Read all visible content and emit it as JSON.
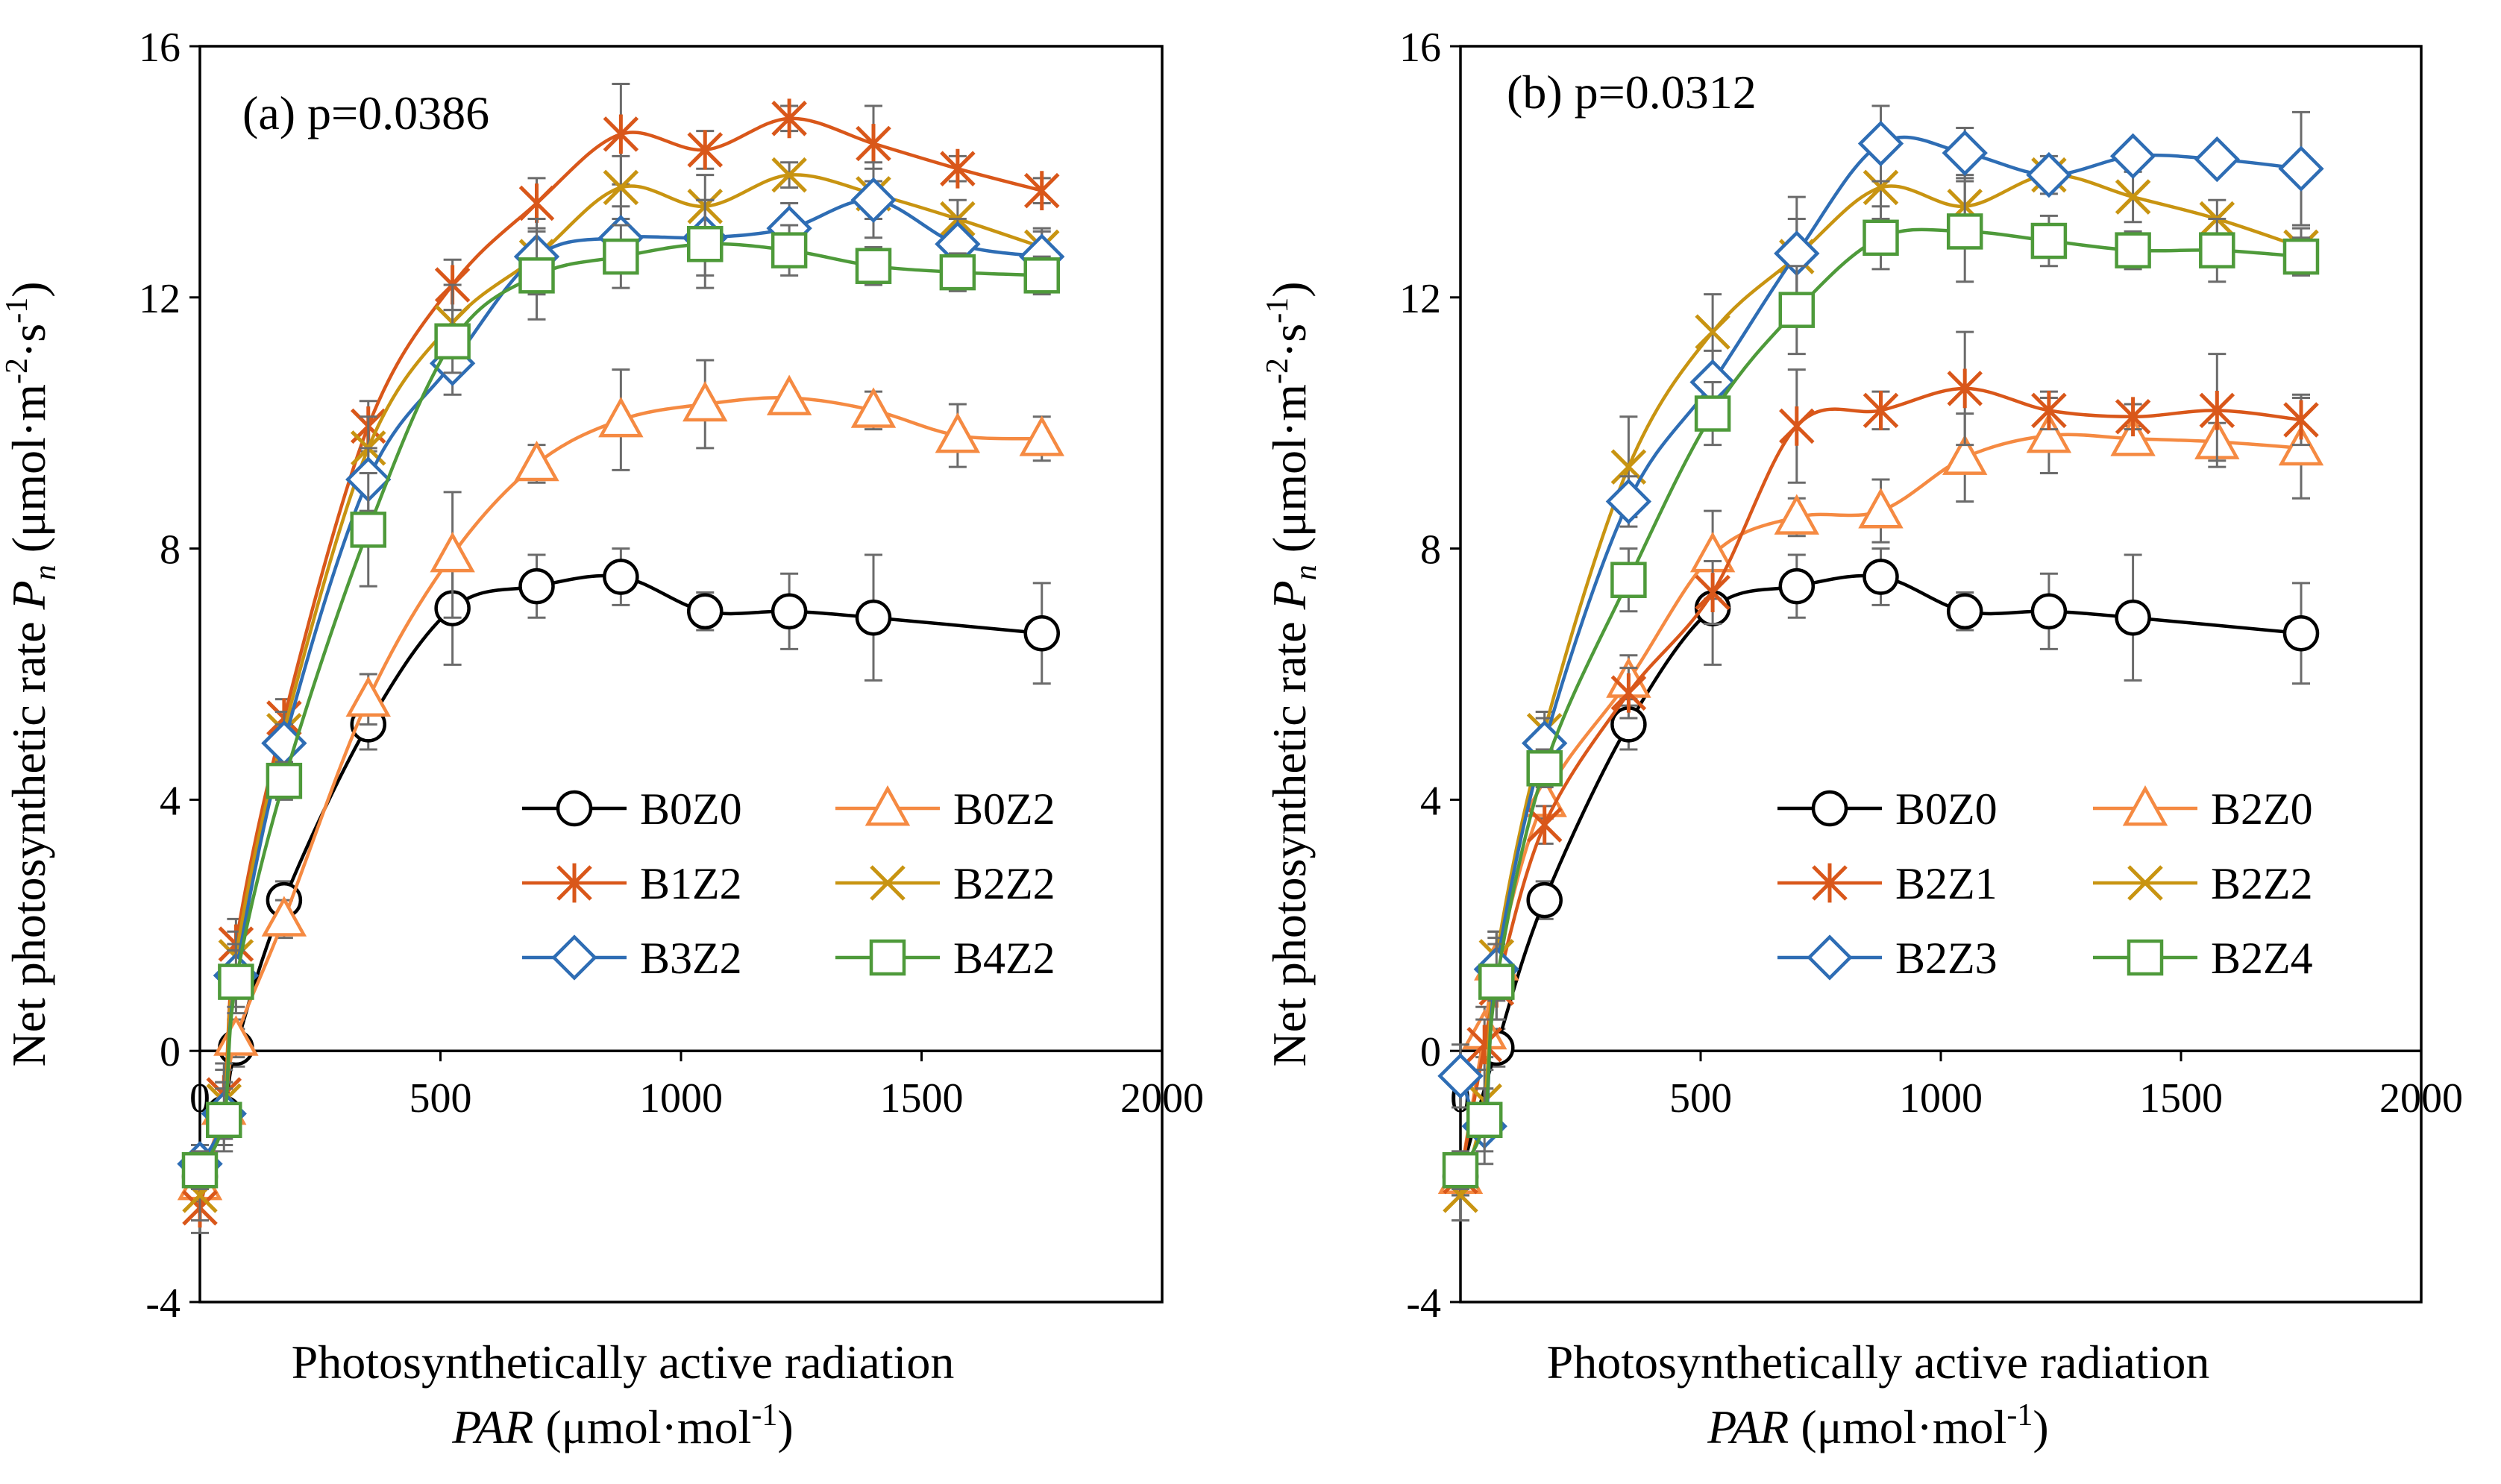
{
  "chart_data": [
    {
      "type": "line",
      "panel_label": "(a)",
      "p_value_text": "p=0.0386",
      "title": "(a) p=0.0386",
      "xlabel_line1": "Photosynthetically active radiation",
      "xlabel_var": "PAR",
      "xlabel_unit_pre": " (μmol·mol",
      "xlabel_unit_sup": "-1",
      "xlabel_unit_post": ")",
      "ylabel_pre": "Net photosynthetic rate ",
      "ylabel_var": "P",
      "ylabel_sub": "n",
      "ylabel_u1": " (μmol·m",
      "ylabel_sup1": "-2",
      "ylabel_u2": "·s",
      "ylabel_sup2": "-1",
      "ylabel_u3": ")",
      "xlim": [
        0,
        2000
      ],
      "ylim": [
        -4,
        16
      ],
      "xticks": [
        0,
        500,
        1000,
        1500,
        2000
      ],
      "xtick_labels": [
        "0",
        "500",
        "1000",
        "1500",
        "2000"
      ],
      "yticks": [
        -4,
        0,
        4,
        8,
        12,
        16
      ],
      "ytick_labels": [
        "-4",
        "0",
        "4",
        "8",
        "12",
        "16"
      ],
      "x": [
        0,
        50,
        75,
        175,
        350,
        525,
        700,
        875,
        1050,
        1225,
        1400,
        1575,
        1750
      ],
      "legend_position": "bottom-right",
      "series": [
        {
          "name": "B0Z0",
          "color": "#000000",
          "marker": "circle",
          "values": [
            -2.0,
            -1.0,
            0.05,
            2.4,
            5.2,
            7.05,
            7.4,
            7.55,
            7.0,
            7.0,
            6.9,
            null,
            6.65
          ],
          "errors": [
            0.3,
            0.4,
            0.3,
            0.3,
            0.4,
            0.9,
            0.5,
            0.45,
            0.3,
            0.6,
            1.0,
            null,
            0.8
          ]
        },
        {
          "name": "B0Z2",
          "color": "#F58A42",
          "marker": "triangle",
          "values": [
            -2.1,
            -0.9,
            0.2,
            2.1,
            5.6,
            7.9,
            9.35,
            10.05,
            10.3,
            10.4,
            10.2,
            9.8,
            9.75
          ],
          "errors": [
            0.3,
            0.4,
            0.3,
            0.3,
            0.4,
            1.0,
            0.3,
            0.8,
            0.7,
            0.1,
            0.3,
            0.5,
            0.35
          ]
        },
        {
          "name": "B1Z2",
          "color": "#D9571A",
          "marker": "asterisk",
          "values": [
            -2.5,
            -0.7,
            1.7,
            5.3,
            9.95,
            12.2,
            13.5,
            14.6,
            14.35,
            14.85,
            14.45,
            14.05,
            13.7
          ],
          "errors": [
            0.4,
            0.5,
            0.4,
            0.3,
            0.4,
            0.4,
            0.4,
            0.8,
            0.3,
            0.2,
            0.6,
            0.2,
            0.2
          ]
        },
        {
          "name": "B2Z2",
          "color": "#C89411",
          "marker": "x",
          "values": [
            -2.3,
            -0.8,
            1.5,
            5.1,
            9.6,
            11.6,
            12.65,
            13.75,
            13.45,
            13.95,
            13.65,
            13.25,
            12.8
          ],
          "errors": [
            0.4,
            0.5,
            0.4,
            0.3,
            0.5,
            0.6,
            0.6,
            0.5,
            0.5,
            0.2,
            0.4,
            0.3,
            0.3
          ]
        },
        {
          "name": "B3Z2",
          "color": "#2E6DB4",
          "marker": "diamond",
          "values": [
            -1.8,
            -1.0,
            1.2,
            4.9,
            9.1,
            10.95,
            12.65,
            12.95,
            12.95,
            13.1,
            13.55,
            12.85,
            12.65
          ],
          "errors": [
            0.3,
            0.5,
            0.5,
            0.3,
            0.5,
            0.5,
            0.6,
            0.5,
            0.6,
            0.4,
            0.6,
            0.4,
            0.4
          ]
        },
        {
          "name": "B4Z2",
          "color": "#4E9A3A",
          "marker": "square",
          "values": [
            -1.9,
            -1.1,
            1.1,
            4.3,
            8.3,
            11.3,
            12.35,
            12.65,
            12.85,
            12.75,
            12.5,
            12.4,
            12.35
          ],
          "errors": [
            0.3,
            0.5,
            0.5,
            0.3,
            0.9,
            0.5,
            0.7,
            0.5,
            0.7,
            0.4,
            0.3,
            0.3,
            0.3
          ]
        }
      ]
    },
    {
      "type": "line",
      "panel_label": "(b)",
      "p_value_text": "p=0.0312",
      "title": "(b) p=0.0312",
      "xlabel_line1": "Photosynthetically active radiation",
      "xlabel_var": "PAR",
      "xlabel_unit_pre": " (μmol·mol",
      "xlabel_unit_sup": "-1",
      "xlabel_unit_post": ")",
      "ylabel_pre": "Net photosynthetic rate ",
      "ylabel_var": "P",
      "ylabel_sub": "n",
      "ylabel_u1": " (μmol·m",
      "ylabel_sup1": "-2",
      "ylabel_u2": "·s",
      "ylabel_sup2": "-1",
      "ylabel_u3": ")",
      "xlim": [
        0,
        2000
      ],
      "ylim": [
        -4,
        16
      ],
      "xticks": [
        0,
        500,
        1000,
        1500,
        2000
      ],
      "xtick_labels": [
        "0",
        "500",
        "1000",
        "1500",
        "2000"
      ],
      "yticks": [
        -4,
        0,
        4,
        8,
        12,
        16
      ],
      "ytick_labels": [
        "-4",
        "0",
        "4",
        "8",
        "12",
        "16"
      ],
      "x": [
        0,
        50,
        75,
        175,
        350,
        525,
        700,
        875,
        1050,
        1225,
        1400,
        1575,
        1750
      ],
      "legend_position": "bottom-right",
      "series": [
        {
          "name": "B0Z0",
          "color": "#000000",
          "marker": "circle",
          "values": [
            -2.0,
            null,
            0.05,
            2.4,
            5.2,
            7.05,
            7.4,
            7.55,
            7.0,
            7.0,
            6.9,
            null,
            6.65
          ],
          "errors": [
            0.3,
            null,
            0.3,
            0.3,
            0.4,
            0.9,
            0.5,
            0.45,
            0.3,
            0.6,
            1.0,
            null,
            0.8
          ]
        },
        {
          "name": "B2Z0",
          "color": "#F58A42",
          "marker": "triangle",
          "values": [
            -2.0,
            0.3,
            1.4,
            4.0,
            5.9,
            7.9,
            8.5,
            8.6,
            9.45,
            9.8,
            9.75,
            9.7,
            9.6
          ],
          "errors": [
            0.3,
            0.4,
            0.5,
            0.3,
            0.4,
            0.7,
            0.3,
            0.5,
            0.7,
            0.6,
            0.2,
            0.3,
            0.8
          ]
        },
        {
          "name": "B2Z1",
          "color": "#D9571A",
          "marker": "asterisk",
          "values": [
            -2.0,
            0.1,
            1.0,
            3.6,
            5.7,
            7.3,
            9.95,
            10.2,
            10.55,
            10.2,
            10.1,
            10.2,
            10.05
          ],
          "errors": [
            0.3,
            0.4,
            0.5,
            0.3,
            0.4,
            0.5,
            0.9,
            0.3,
            0.9,
            0.3,
            0.2,
            0.9,
            0.4
          ]
        },
        {
          "name": "B2Z2",
          "color": "#C89411",
          "marker": "x",
          "values": [
            -2.3,
            -0.8,
            1.5,
            5.1,
            9.3,
            11.45,
            12.65,
            13.75,
            13.45,
            13.95,
            13.6,
            13.25,
            12.8
          ],
          "errors": [
            0.4,
            0.5,
            0.4,
            0.3,
            0.8,
            0.6,
            0.6,
            0.5,
            0.5,
            0.2,
            0.4,
            0.3,
            0.3
          ]
        },
        {
          "name": "B2Z3",
          "color": "#2E6DB4",
          "marker": "diamond",
          "values": [
            -0.4,
            -1.2,
            1.3,
            4.9,
            8.75,
            10.65,
            12.7,
            14.45,
            14.3,
            13.95,
            14.25,
            14.2,
            14.05
          ],
          "errors": [
            0.5,
            0.6,
            0.5,
            0.4,
            0.4,
            0.5,
            0.9,
            0.6,
            0.4,
            0.3,
            0.2,
            0.2,
            0.9
          ]
        },
        {
          "name": "B2Z4",
          "color": "#4E9A3A",
          "marker": "square",
          "values": [
            -1.9,
            -1.1,
            1.1,
            4.5,
            7.5,
            10.15,
            11.8,
            12.95,
            13.05,
            12.9,
            12.75,
            12.75,
            12.65
          ],
          "errors": [
            0.3,
            0.5,
            0.6,
            0.3,
            0.5,
            0.5,
            0.7,
            0.5,
            0.8,
            0.4,
            0.3,
            0.5,
            0.3
          ]
        }
      ]
    }
  ]
}
